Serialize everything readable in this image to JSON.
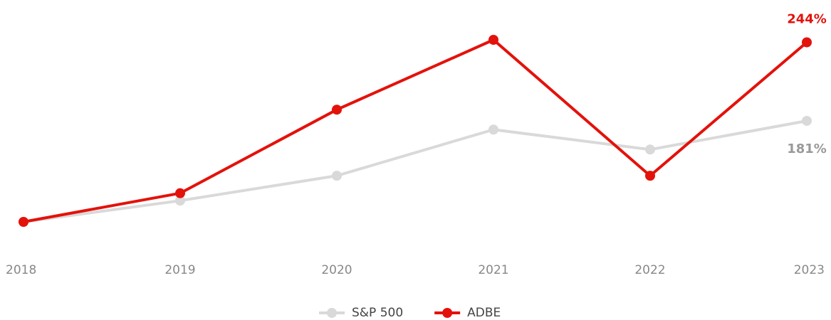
{
  "chart_data": {
    "type": "line",
    "categories": [
      "2018",
      "2019",
      "2020",
      "2021",
      "2022",
      "2023"
    ],
    "series": [
      {
        "name": "S&P 500",
        "color": "#d9d9d9",
        "label_color": "#999999",
        "values": [
          100,
          117,
          137,
          174,
          158,
          181
        ],
        "value_labels": [
          null,
          null,
          null,
          null,
          null,
          "181%"
        ]
      },
      {
        "name": "ADBE",
        "color": "#e3120b",
        "label_color": "#e3120b",
        "values": [
          100,
          123,
          190,
          246,
          137,
          244
        ],
        "value_labels": [
          null,
          null,
          null,
          null,
          null,
          "244%"
        ]
      }
    ],
    "legend": "bottom"
  }
}
